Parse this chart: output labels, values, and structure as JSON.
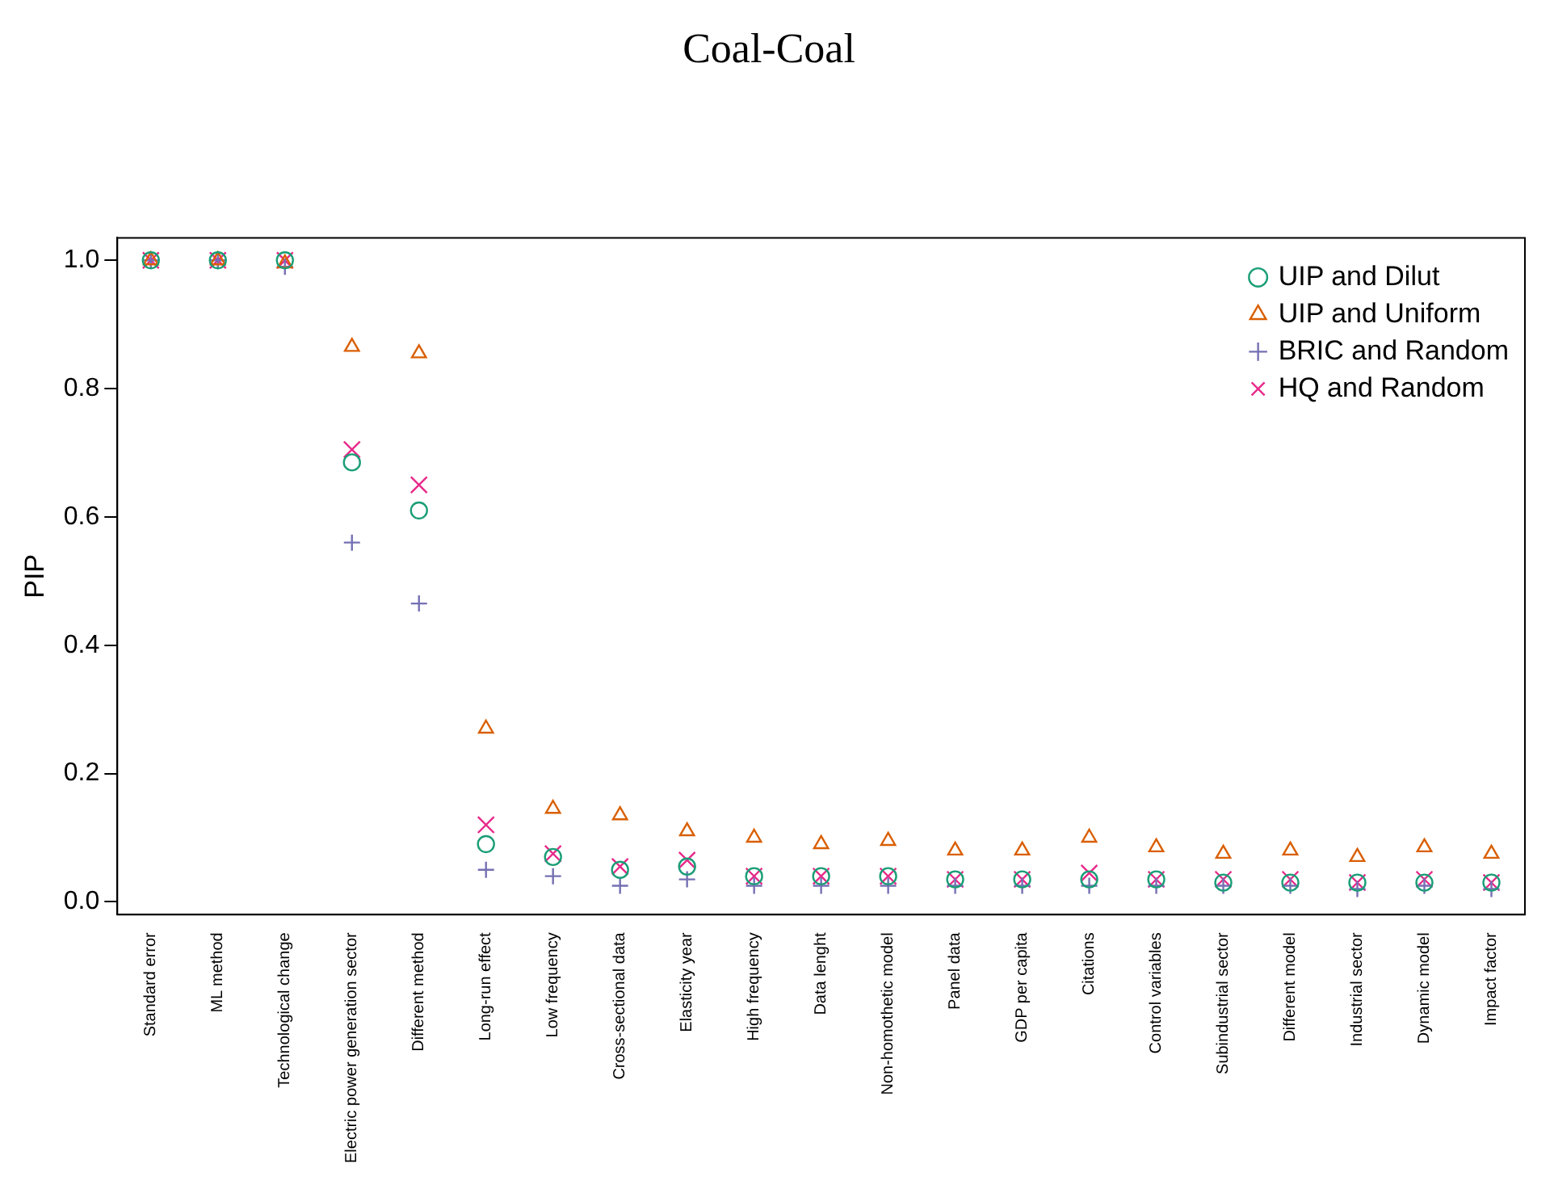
{
  "chart_data": {
    "type": "scatter",
    "title": "Coal-Coal",
    "ylabel": "PIP",
    "categories": [
      "Standard error",
      "ML method",
      "Technological change",
      "Electric power generation sector",
      "Different method",
      "Long-run effect",
      "Low frequency",
      "Cross-sectional data",
      "Elasticity year",
      "High frequency",
      "Data lenght",
      "Non-homothetic model",
      "Panel data",
      "GDP per capita",
      "Citations",
      "Control variables",
      "Subindustrial sector",
      "Different model",
      "Industrial sector",
      "Dynamic model",
      "Impact factor"
    ],
    "series": [
      {
        "name": "UIP and Dilut",
        "color": "#1b9e77",
        "marker": "circle",
        "values": [
          1,
          1,
          1,
          0.685,
          0.61,
          0.09,
          0.07,
          0.05,
          0.055,
          0.04,
          0.04,
          0.04,
          0.035,
          0.035,
          0.035,
          0.035,
          0.03,
          0.03,
          0.03,
          0.03,
          0.03
        ]
      },
      {
        "name": "UIP and Uniform",
        "color": "#d95f02",
        "marker": "triangle",
        "values": [
          1,
          1,
          0.995,
          0.865,
          0.855,
          0.27,
          0.145,
          0.135,
          0.11,
          0.1,
          0.09,
          0.095,
          0.08,
          0.08,
          0.1,
          0.085,
          0.075,
          0.08,
          0.07,
          0.085,
          0.075
        ]
      },
      {
        "name": "BRIC and Random",
        "color": "#7570b3",
        "marker": "cross",
        "values": [
          1,
          1,
          0.99,
          0.56,
          0.465,
          0.05,
          0.04,
          0.025,
          0.035,
          0.025,
          0.025,
          0.025,
          0.025,
          0.025,
          0.025,
          0.025,
          0.025,
          0.025,
          0.02,
          0.025,
          0.02
        ]
      },
      {
        "name": "HQ and Random",
        "color": "#e7298a",
        "marker": "x",
        "values": [
          1,
          1,
          1,
          0.705,
          0.65,
          0.12,
          0.075,
          0.055,
          0.065,
          0.04,
          0.04,
          0.04,
          0.035,
          0.035,
          0.045,
          0.035,
          0.035,
          0.035,
          0.03,
          0.035,
          0.03
        ]
      }
    ],
    "ylim": [
      -0.02,
      1.035
    ],
    "yticks": [
      {
        "value": 0,
        "label": "0.0"
      },
      {
        "value": 0.2,
        "label": "0.2"
      },
      {
        "value": 0.4,
        "label": "0.4"
      },
      {
        "value": 0.6,
        "label": "0.6"
      },
      {
        "value": 0.8,
        "label": "0.8"
      },
      {
        "value": 1,
        "label": "1.0"
      }
    ],
    "grid": false,
    "legend": "top right"
  }
}
